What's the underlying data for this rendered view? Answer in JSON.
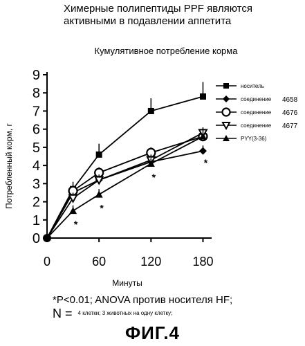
{
  "figure_title_lines": [
    "Химерные полипептиды PPF являются",
    "активными в подавлении аппетита"
  ],
  "chart_data": {
    "type": "line",
    "title": "Кумулятивное потребление корма",
    "xlabel": "Минуты",
    "ylabel": "Потребленный корм, г",
    "x": [
      0,
      30,
      60,
      120,
      180
    ],
    "xticks": [
      0,
      60,
      120,
      180
    ],
    "yticks": [
      0,
      1,
      2,
      3,
      4,
      5,
      6,
      7,
      8,
      9
    ],
    "xlim": [
      0,
      190
    ],
    "ylim": [
      0,
      9
    ],
    "grid": false,
    "legend_position": "top-right",
    "series": [
      {
        "name": "носитель",
        "code": "",
        "marker": "square",
        "values": [
          0,
          2.7,
          4.6,
          7.0,
          7.8
        ],
        "err": [
          0,
          0.4,
          0.6,
          0.7,
          0.8
        ]
      },
      {
        "name": "соединение",
        "code": "4658",
        "marker": "diamond",
        "values": [
          0,
          2.5,
          3.2,
          4.2,
          4.8
        ],
        "err": [
          0,
          0.3,
          0.3,
          0.3,
          0.3
        ]
      },
      {
        "name": "соединение",
        "code": "4676",
        "marker": "circle",
        "values": [
          0,
          2.6,
          3.6,
          4.7,
          5.6
        ],
        "err": [
          0,
          0.3,
          0.3,
          0.3,
          0.3
        ]
      },
      {
        "name": "соединение",
        "code": "4677",
        "marker": "triangle-down",
        "values": [
          0,
          2.2,
          3.2,
          4.3,
          5.8
        ],
        "err": [
          0,
          0.3,
          0.3,
          0.3,
          0.3
        ]
      },
      {
        "name": "PYY(3-36)",
        "code": "",
        "marker": "triangle-up",
        "values": [
          0,
          1.5,
          2.4,
          4.1,
          5.6
        ],
        "err": [
          0,
          0.3,
          0.3,
          0.3,
          0.4
        ]
      }
    ],
    "significance_marker": "*",
    "significance_points": [
      {
        "x": 30,
        "y": 0.8
      },
      {
        "x": 60,
        "y": 1.7
      },
      {
        "x": 120,
        "y": 3.4
      },
      {
        "x": 180,
        "y": 4.2
      }
    ]
  },
  "footnote": "*P<0.01; ANOVA  против носителя HF;",
  "n_label": "N =",
  "n_text": "4 клетки; 3 животных на одну клетку;",
  "figure_label": "ФИГ.4",
  "colors": {
    "ink": "#000000",
    "background": "#ffffff"
  }
}
